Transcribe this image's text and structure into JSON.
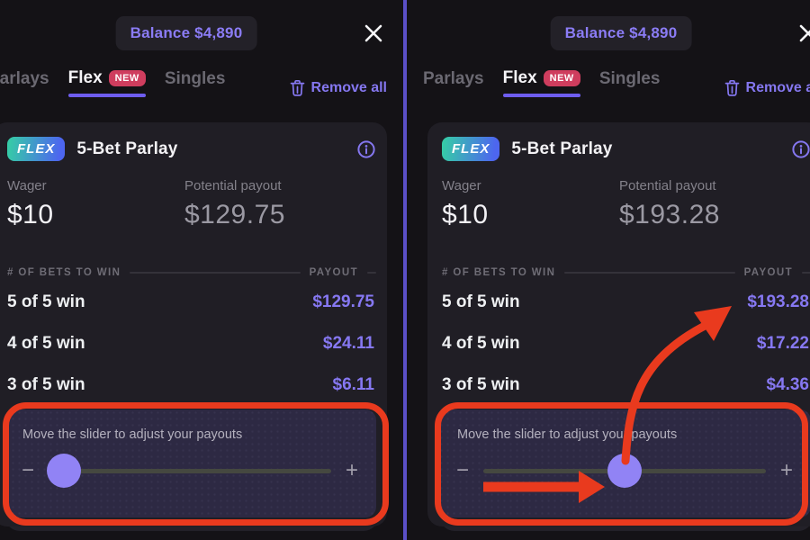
{
  "colors": {
    "accent_purple": "#8577f2",
    "balance_purple": "#8b7cf5",
    "annotation_red": "#e93a1e",
    "flex_gradient_start": "#35cfa4",
    "flex_gradient_end": "#4d66ef",
    "new_badge_red": "#cf3d5e",
    "slider_thumb_purple": "#9183f5",
    "tab_underline_purple": "#6e5df0",
    "panel_divider_purple": "#5c50c8"
  },
  "header": {
    "balance": "Balance $4,890"
  },
  "tabs": {
    "parlays": "Parlays",
    "flex": "Flex",
    "new_badge": "NEW",
    "singles": "Singles",
    "remove_all": "Remove all"
  },
  "panels": [
    {
      "flex_badge": "FLEX",
      "title": "5-Bet Parlay",
      "wager_label": "Wager",
      "wager_value": "$10",
      "payout_label": "Potential payout",
      "payout_value": "$129.75",
      "table_col_left": "# OF BETS TO WIN",
      "table_col_right": "PAYOUT",
      "rows": [
        {
          "label": "5 of 5 win",
          "value": "$129.75"
        },
        {
          "label": "4 of 5 win",
          "value": "$24.11"
        },
        {
          "label": "3 of 5 win",
          "value": "$6.11"
        }
      ],
      "slider_hint": "Move the slider to adjust your payouts",
      "minus": "−",
      "plus": "+",
      "thumb_pct": 5.5
    },
    {
      "flex_badge": "FLEX",
      "title": "5-Bet Parlay",
      "wager_label": "Wager",
      "wager_value": "$10",
      "payout_label": "Potential payout",
      "payout_value": "$193.28",
      "table_col_left": "# OF BETS TO WIN",
      "table_col_right": "PAYOUT",
      "rows": [
        {
          "label": "5 of 5 win",
          "value": "$193.28"
        },
        {
          "label": "4 of 5 win",
          "value": "$17.22"
        },
        {
          "label": "3 of 5 win",
          "value": "$4.36"
        }
      ],
      "slider_hint": "Move the slider to adjust your payouts",
      "minus": "−",
      "plus": "+",
      "thumb_pct": 50
    }
  ]
}
